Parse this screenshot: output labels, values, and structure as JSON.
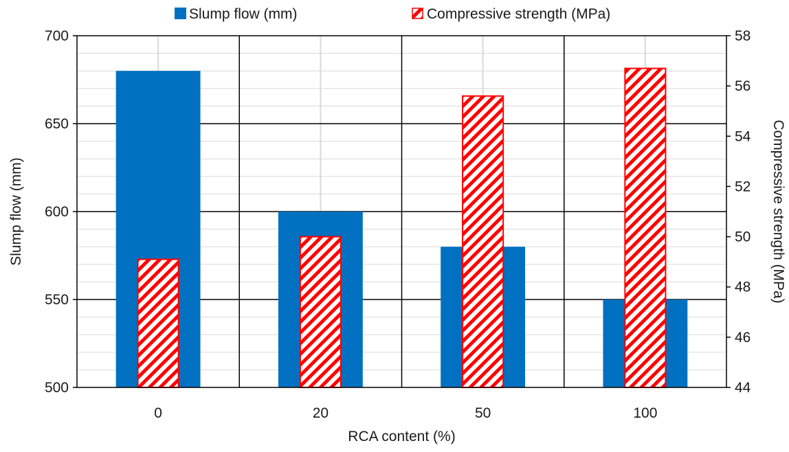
{
  "chart_data": {
    "type": "bar",
    "xlabel": "RCA content (%)",
    "ylabel": "Slump flow (mm)",
    "y2label": "Compressive strength (MPa)",
    "categories": [
      "0",
      "20",
      "50",
      "100"
    ],
    "ylim": [
      500,
      700
    ],
    "y_ticks": [
      "500",
      "550",
      "600",
      "650",
      "700"
    ],
    "y2lim": [
      44,
      58
    ],
    "y2_ticks": [
      "44",
      "46",
      "48",
      "50",
      "52",
      "54",
      "56",
      "58"
    ],
    "grid": true,
    "legend_position": "top",
    "series": [
      {
        "name": "Slump flow (mm)",
        "axis": "left",
        "values": [
          680,
          600,
          580,
          550
        ],
        "color": "#0070C0",
        "fill": "solid"
      },
      {
        "name": "Compressive strength (MPa)",
        "axis": "right",
        "values": [
          49.1,
          50.0,
          55.6,
          56.7
        ],
        "color": "#FF0000",
        "fill": "diagonal-hatch"
      }
    ]
  }
}
